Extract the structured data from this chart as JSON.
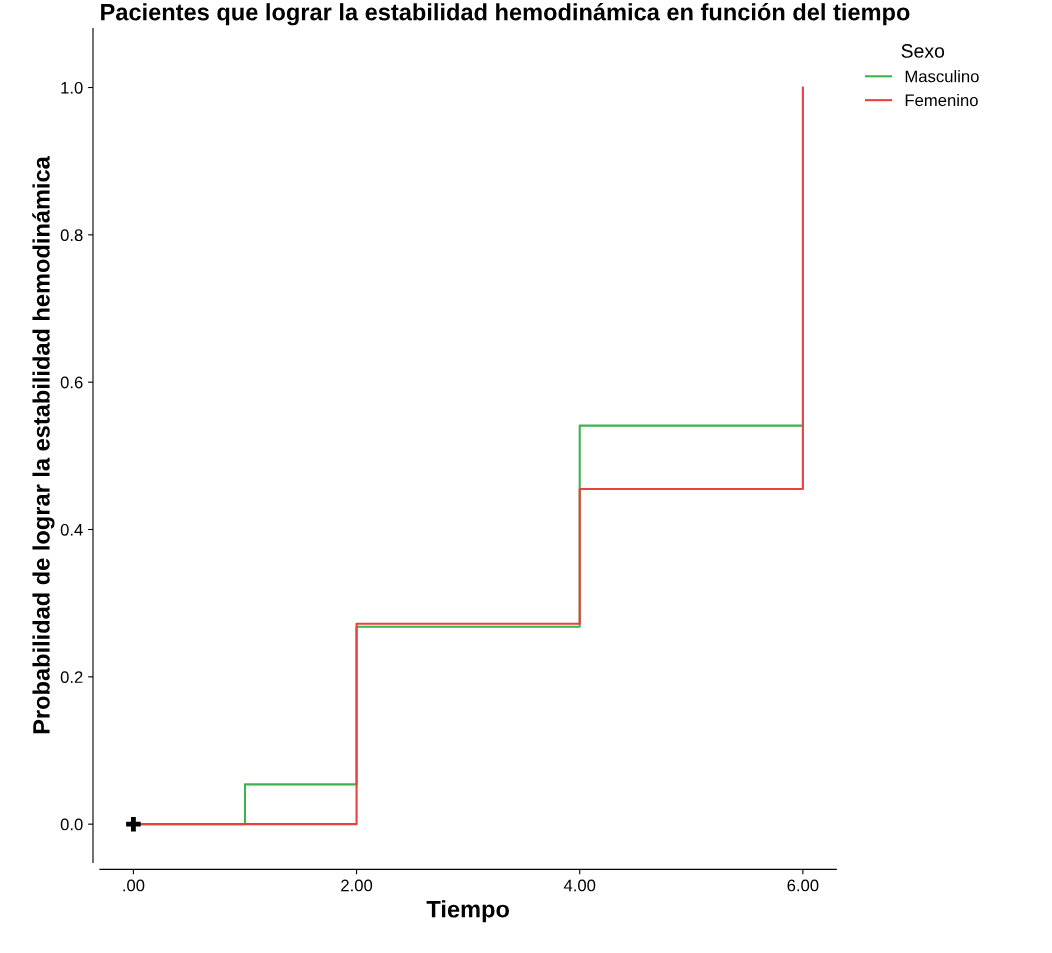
{
  "chart_data": {
    "type": "step",
    "title": "Pacientes que lograr la estabilidad hemodinámica en función del tiempo",
    "xlabel": "Tiempo",
    "ylabel": "Probabilidad de lograr la estabilidad hemodinámica",
    "legend_title": "Sexo",
    "legend": "top right",
    "series": [
      {
        "name": "Masculino",
        "color": "#3cb44b",
        "x": [
          0,
          1,
          2,
          4,
          6
        ],
        "values": [
          0,
          0.054,
          0.268,
          0.541,
          0.541
        ]
      },
      {
        "name": "Femenino",
        "color": "#e8413c",
        "x": [
          0,
          2,
          4,
          6
        ],
        "values": [
          0,
          0.272,
          0.455,
          1.0
        ]
      },
      {
        "type": "scatter",
        "color": "#000000",
        "marker": "cross",
        "x": [
          0
        ],
        "values": [
          0
        ]
      }
    ],
    "xlim": [
      -0.3,
      6.3
    ],
    "ylim": [
      -0.052,
      1.08
    ],
    "xticks": [
      {
        "value": 0,
        "label": ".00"
      },
      {
        "value": 2,
        "label": "2.00"
      },
      {
        "value": 4,
        "label": "4.00"
      },
      {
        "value": 6,
        "label": "6.00"
      }
    ],
    "yticks": [
      {
        "value": 0,
        "label": "0.0"
      },
      {
        "value": 0.2,
        "label": "0.2"
      },
      {
        "value": 0.4,
        "label": "0.4"
      },
      {
        "value": 0.6,
        "label": "0.6"
      },
      {
        "value": 0.8,
        "label": "0.8"
      },
      {
        "value": 1.0,
        "label": "1.0"
      }
    ],
    "grid": false
  }
}
